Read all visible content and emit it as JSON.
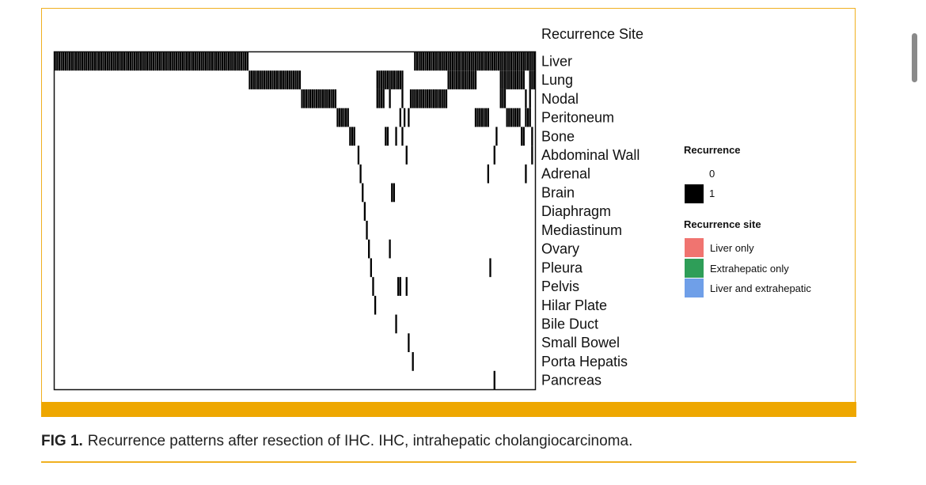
{
  "caption": {
    "label": "FIG 1.",
    "text": "Recurrence patterns after resection of IHC. IHC, intrahepatic cholangiocarcinoma."
  },
  "colors": {
    "accent": "#eea700",
    "cell": "#000000",
    "liver_only": "#f07470",
    "extrahepatic_only": "#2e9e58",
    "liver_and_extrahepatic": "#6f9fe8"
  },
  "chart_data": {
    "type": "heatmap",
    "title": "Recurrence Site",
    "n_patients": 230,
    "rows": [
      "Liver",
      "Lung",
      "Nodal",
      "Peritoneum",
      "Bone",
      "Abdominal Wall",
      "Adrenal",
      "Brain",
      "Diaphragm",
      "Mediastinum",
      "Ovary",
      "Pleura",
      "Pelvis",
      "Hilar Plate",
      "Bile Duct",
      "Small Bowel",
      "Porta Hepatis",
      "Pancreas"
    ],
    "positive_ranges": [
      [
        [
          0,
          93
        ],
        [
          172,
          230
        ]
      ],
      [
        [
          93,
          118
        ],
        [
          154,
          167
        ],
        [
          188,
          202
        ],
        [
          213,
          225
        ],
        [
          227,
          230
        ]
      ],
      [
        [
          118,
          135
        ],
        [
          154,
          158
        ],
        [
          160,
          161
        ],
        [
          166,
          167
        ],
        [
          170,
          188
        ],
        [
          213,
          216
        ],
        [
          225,
          226
        ],
        [
          227,
          228
        ]
      ],
      [
        [
          135,
          141
        ],
        [
          165,
          166
        ],
        [
          167,
          168
        ],
        [
          169,
          170
        ],
        [
          201,
          208
        ],
        [
          216,
          223
        ],
        [
          225,
          228
        ]
      ],
      [
        [
          141,
          144
        ],
        [
          158,
          160
        ],
        [
          163,
          164
        ],
        [
          166,
          167
        ],
        [
          211,
          212
        ],
        [
          223,
          225
        ],
        [
          228,
          229
        ]
      ],
      [
        [
          145,
          146
        ],
        [
          168,
          169
        ],
        [
          210,
          211
        ],
        [
          228,
          229
        ]
      ],
      [
        [
          146,
          147
        ],
        [
          207,
          208
        ],
        [
          225,
          226
        ]
      ],
      [
        [
          147,
          148
        ],
        [
          161,
          163
        ]
      ],
      [
        [
          148,
          149
        ]
      ],
      [
        [
          149,
          150
        ]
      ],
      [
        [
          150,
          151
        ],
        [
          160,
          161
        ]
      ],
      [
        [
          151,
          152
        ],
        [
          208,
          209
        ]
      ],
      [
        [
          152,
          153
        ],
        [
          164,
          166
        ],
        [
          168,
          169
        ]
      ],
      [
        [
          153,
          154
        ]
      ],
      [
        [
          163,
          164
        ]
      ],
      [
        [
          169,
          170
        ]
      ],
      [
        [
          171,
          172
        ]
      ],
      [
        [
          210,
          211
        ]
      ]
    ],
    "legend": {
      "recurrence_title": "Recurrence",
      "recurrence_levels": [
        "0",
        "1"
      ],
      "site_title": "Recurrence site",
      "site_levels": [
        "Liver only",
        "Extrahepatic only",
        "Liver and extrahepatic"
      ]
    }
  }
}
